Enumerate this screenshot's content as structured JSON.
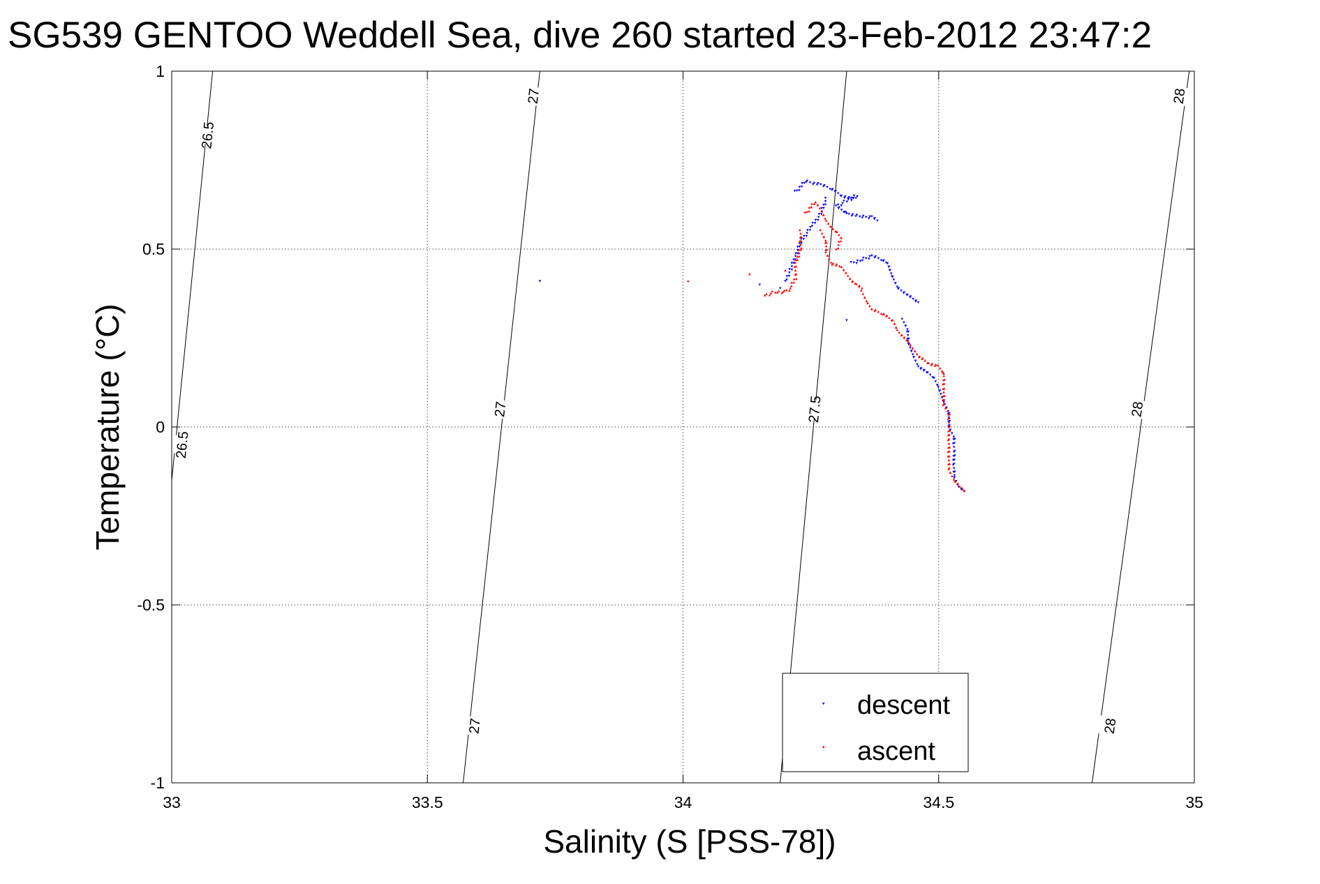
{
  "chart_data": {
    "type": "scatter",
    "title": "SG539 GENTOO Weddell Sea, dive 260 started 23-Feb-2012 23:47:2",
    "xlabel": "Salinity (S [PSS-78])",
    "ylabel": "Temperature (°C)",
    "xlim": [
      33,
      35
    ],
    "ylim": [
      -1,
      1
    ],
    "x_ticks": [
      "33",
      "33.5",
      "34",
      "34.5",
      "35"
    ],
    "y_ticks": [
      "-1",
      "-0.5",
      "0",
      "0.5",
      "1"
    ],
    "grid": true,
    "legend_position": "bottom-center",
    "density_contours": [
      {
        "level": "26.5",
        "points": [
          [
            33.08,
            1.0
          ],
          [
            33.0,
            -0.15
          ]
        ],
        "labels": [
          {
            "label": "26.5",
            "x": 33.07,
            "y": 0.82
          },
          {
            "label": "26.5",
            "x": 33.02,
            "y": -0.05
          }
        ]
      },
      {
        "level": "27",
        "points": [
          [
            33.72,
            1.0
          ],
          [
            33.57,
            -1.0
          ]
        ],
        "labels": [
          {
            "label": "27",
            "x": 33.707,
            "y": 0.93
          },
          {
            "label": "27",
            "x": 33.642,
            "y": 0.05
          },
          {
            "label": "27",
            "x": 33.592,
            "y": -0.84
          }
        ]
      },
      {
        "level": "27.5",
        "points": [
          [
            34.32,
            1.0
          ],
          [
            34.19,
            -1.0
          ]
        ],
        "labels": [
          {
            "label": "27.5",
            "x": 34.257,
            "y": 0.05
          }
        ]
      },
      {
        "level": "28",
        "points": [
          [
            34.99,
            1.0
          ],
          [
            34.8,
            -1.0
          ]
        ],
        "labels": [
          {
            "label": "28",
            "x": 34.97,
            "y": 0.93
          },
          {
            "label": "28",
            "x": 34.888,
            "y": 0.05
          },
          {
            "label": "28",
            "x": 34.835,
            "y": -0.84
          }
        ]
      }
    ],
    "series": [
      {
        "name": "descent",
        "color": "#0000ff",
        "marker": "triangle-down",
        "segments": [
          [
            [
              34.22,
              0.66
            ],
            [
              34.24,
              0.69
            ],
            [
              34.27,
              0.68
            ],
            [
              34.29,
              0.67
            ],
            [
              34.31,
              0.65
            ],
            [
              34.33,
              0.64
            ],
            [
              34.34,
              0.65
            ],
            [
              34.3,
              0.62
            ],
            [
              34.32,
              0.6
            ]
          ],
          [
            [
              34.32,
              0.6
            ],
            [
              34.35,
              0.59
            ],
            [
              34.37,
              0.59
            ],
            [
              34.38,
              0.58
            ]
          ],
          [
            [
              34.28,
              0.64
            ],
            [
              34.27,
              0.6
            ],
            [
              34.25,
              0.56
            ],
            [
              34.23,
              0.52
            ],
            [
              34.22,
              0.48
            ],
            [
              34.21,
              0.44
            ],
            [
              34.2,
              0.41
            ]
          ],
          [
            [
              34.33,
              0.46
            ],
            [
              34.35,
              0.47
            ],
            [
              34.37,
              0.48
            ],
            [
              34.39,
              0.47
            ],
            [
              34.4,
              0.46
            ],
            [
              34.41,
              0.42
            ],
            [
              34.42,
              0.39
            ],
            [
              34.44,
              0.37
            ],
            [
              34.46,
              0.35
            ]
          ],
          [
            [
              34.43,
              0.3
            ],
            [
              34.44,
              0.27
            ],
            [
              34.44,
              0.24
            ],
            [
              34.45,
              0.2
            ],
            [
              34.46,
              0.17
            ],
            [
              34.48,
              0.15
            ],
            [
              34.49,
              0.14
            ],
            [
              34.5,
              0.11
            ],
            [
              34.51,
              0.07
            ]
          ],
          [
            [
              34.51,
              0.07
            ],
            [
              34.52,
              0.04
            ],
            [
              34.52,
              0.0
            ],
            [
              34.53,
              -0.03
            ],
            [
              34.53,
              -0.07
            ],
            [
              34.53,
              -0.11
            ],
            [
              34.53,
              -0.14
            ],
            [
              34.54,
              -0.17
            ],
            [
              34.55,
              -0.18
            ]
          ]
        ],
        "points": [
          [
            33.72,
            0.41
          ],
          [
            34.32,
            0.3
          ],
          [
            34.15,
            0.4
          ],
          [
            34.19,
            0.39
          ]
        ]
      },
      {
        "name": "ascent",
        "color": "#ff0000",
        "marker": "triangle-up",
        "segments": [
          [
            [
              34.24,
              0.6
            ],
            [
              34.25,
              0.62
            ],
            [
              34.26,
              0.63
            ],
            [
              34.27,
              0.61
            ],
            [
              34.28,
              0.58
            ],
            [
              34.29,
              0.56
            ],
            [
              34.3,
              0.55
            ],
            [
              34.31,
              0.53
            ],
            [
              34.3,
              0.5
            ]
          ],
          [
            [
              34.23,
              0.55
            ],
            [
              34.23,
              0.5
            ],
            [
              34.22,
              0.46
            ],
            [
              34.22,
              0.42
            ],
            [
              34.21,
              0.39
            ],
            [
              34.2,
              0.38
            ],
            [
              34.18,
              0.38
            ],
            [
              34.16,
              0.37
            ]
          ],
          [
            [
              34.27,
              0.55
            ],
            [
              34.28,
              0.52
            ],
            [
              34.28,
              0.49
            ],
            [
              34.29,
              0.46
            ],
            [
              34.31,
              0.45
            ],
            [
              34.32,
              0.43
            ],
            [
              34.33,
              0.41
            ],
            [
              34.34,
              0.4
            ],
            [
              34.35,
              0.39
            ]
          ],
          [
            [
              34.35,
              0.38
            ],
            [
              34.36,
              0.35
            ],
            [
              34.37,
              0.33
            ],
            [
              34.39,
              0.32
            ],
            [
              34.41,
              0.3
            ],
            [
              34.42,
              0.27
            ],
            [
              34.44,
              0.24
            ],
            [
              34.45,
              0.22
            ],
            [
              34.46,
              0.2
            ],
            [
              34.48,
              0.18
            ],
            [
              34.5,
              0.17
            ],
            [
              34.51,
              0.15
            ]
          ],
          [
            [
              34.51,
              0.15
            ],
            [
              34.51,
              0.11
            ],
            [
              34.51,
              0.06
            ],
            [
              34.52,
              0.04
            ],
            [
              34.52,
              0.0
            ],
            [
              34.52,
              -0.04
            ],
            [
              34.52,
              -0.08
            ],
            [
              34.52,
              -0.12
            ],
            [
              34.53,
              -0.15
            ],
            [
              34.55,
              -0.18
            ]
          ]
        ],
        "points": [
          [
            34.01,
            0.41
          ],
          [
            34.13,
            0.43
          ],
          [
            34.2,
            0.44
          ]
        ]
      }
    ]
  }
}
